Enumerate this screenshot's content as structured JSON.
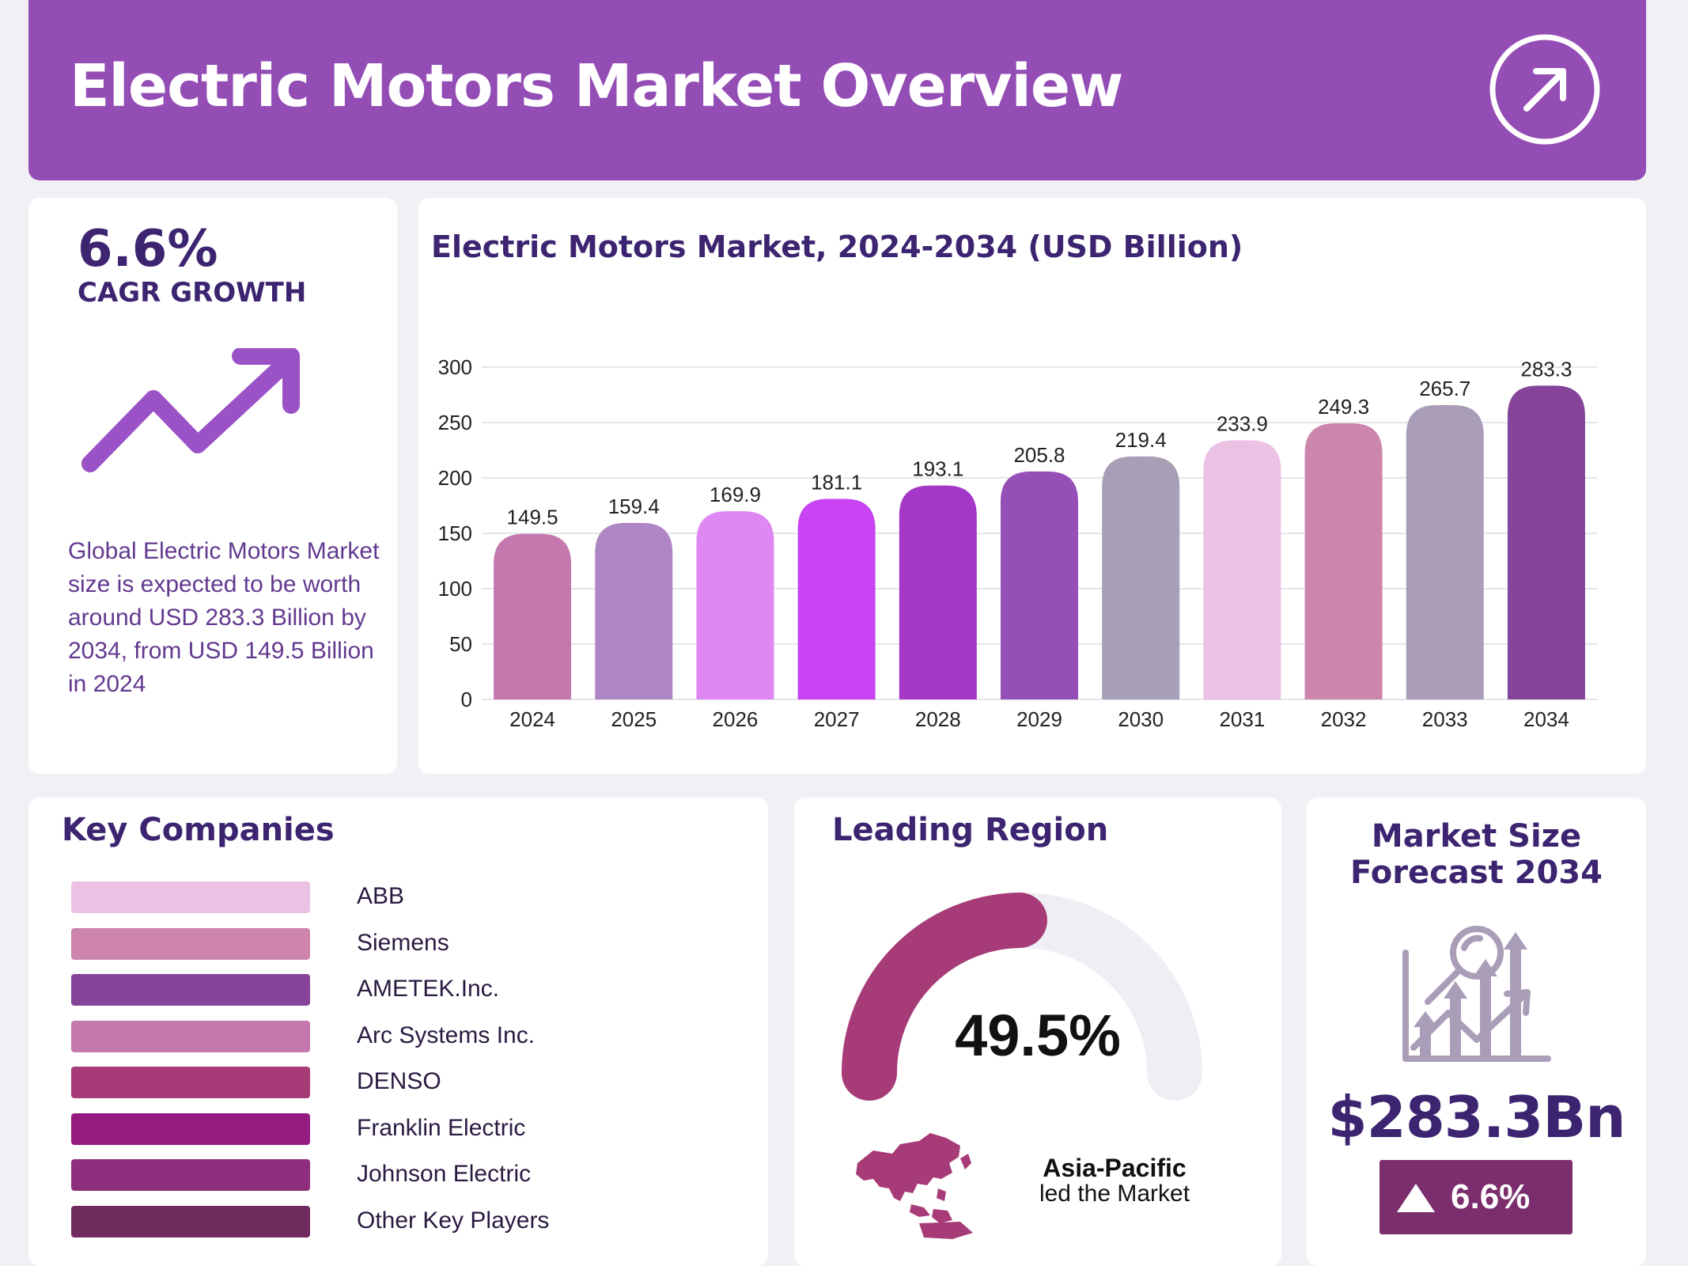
{
  "header": {
    "title": "Electric Motors Market Overview",
    "icon": "arrow-up-right-circle-icon"
  },
  "cagr": {
    "value": "6.6%",
    "label": "CAGR GROWTH",
    "description": "Global Electric Motors Market size is expected to be worth around USD 283.3 Billion by 2034, from USD 149.5 Billion in 2024",
    "icon": "trend-up-arrow-icon",
    "icon_color": "#9b52c6"
  },
  "chart_data": {
    "type": "bar",
    "title": "Electric Motors Market, 2024-2034 (USD Billion)",
    "xlabel": "",
    "ylabel": "",
    "categories": [
      "2024",
      "2025",
      "2026",
      "2027",
      "2028",
      "2029",
      "2030",
      "2031",
      "2032",
      "2033",
      "2034"
    ],
    "values": [
      149.5,
      159.4,
      169.9,
      181.1,
      193.1,
      205.8,
      219.4,
      233.9,
      249.3,
      265.7,
      283.3
    ],
    "value_labels": [
      "149.5",
      "159.4",
      "169.9",
      "181.1",
      "193.1",
      "205.8",
      "219.4",
      "233.9",
      "249.3",
      "265.7",
      "283.3"
    ],
    "colors": [
      "#c478ad",
      "#af86c4",
      "#df88f4",
      "#c843f1",
      "#a437c6",
      "#9550b7",
      "#a89eb6",
      "#ecc2e4",
      "#cc85ac",
      "#a99db8",
      "#854499"
    ],
    "ylim": [
      0,
      300
    ],
    "yticks": [
      0,
      50,
      100,
      150,
      200,
      250,
      300
    ],
    "ytick_labels": [
      "0",
      "50",
      "100",
      "150",
      "200",
      "250",
      "300"
    ],
    "grid": true,
    "legend": "none"
  },
  "companies": {
    "title": "Key Companies",
    "items": [
      {
        "name": "ABB",
        "color": "#ecc2e4"
      },
      {
        "name": "Siemens",
        "color": "#cd85ac"
      },
      {
        "name": "AMETEK.Inc.",
        "color": "#854499"
      },
      {
        "name": "Arc Systems Inc.",
        "color": "#c478ad"
      },
      {
        "name": "DENSO",
        "color": "#a73b77"
      },
      {
        "name": "Franklin Electric",
        "color": "#961b80"
      },
      {
        "name": "Johnson Electric",
        "color": "#8d2f7d"
      },
      {
        "name": "Other Key Players",
        "color": "#702b5e"
      }
    ]
  },
  "region": {
    "title": "Leading Region",
    "share": 0.495,
    "share_label": "49.5%",
    "name": "Asia-Pacific",
    "subtitle": "led the Market",
    "gauge_color": "#a73b77",
    "gauge_track_color": "#efeef4",
    "map_icon": "asia-pacific-map-icon"
  },
  "forecast": {
    "title_line1": "Market Size",
    "title_line2": "Forecast 2034",
    "value": "$283.3Bn",
    "badge": "6.6%",
    "badge_icon": "triangle-up-icon",
    "icon": "growth-analytics-icon"
  }
}
